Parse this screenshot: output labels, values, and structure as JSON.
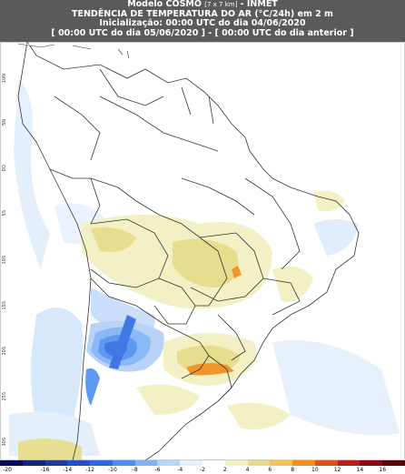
{
  "header": {
    "line1_main": "Modelo COSMO",
    "line1_small": "[7 x 7 km]",
    "line1_tail": "- INMET",
    "line2": "TENDÊNCIA DE TEMPERATURA DO AR (°C/24h) em 2 m",
    "line3": "Inicialização: 00:00 UTC do dia 04/06/2020",
    "line4": "[ 00:00 UTC do dia 05/06/2020 ] - [ 00:00 UTC do dia anterior ]"
  },
  "map": {
    "latitude_labels": [
      "10N",
      "5N",
      "EQ",
      "5S",
      "10S",
      "15S",
      "20S",
      "25S",
      "30S"
    ]
  },
  "colorbar": {
    "ticks": [
      "-20",
      "-16",
      "-14",
      "-12",
      "-10",
      "-8",
      "-6",
      "-4",
      "-2",
      "2",
      "4",
      "6",
      "8",
      "10",
      "12",
      "14",
      "16"
    ],
    "colors": [
      "#0a0a5a",
      "#14267a",
      "#1c3d9e",
      "#2250c8",
      "#2d6ae0",
      "#4c8ef0",
      "#7fb2f5",
      "#b6d6fb",
      "#e6f0fd",
      "#ffffff",
      "#f3f0c2",
      "#e6dc8a",
      "#f6c05a",
      "#f0901e",
      "#d8531a",
      "#b8201a",
      "#8c0a14",
      "#5a000a"
    ]
  }
}
